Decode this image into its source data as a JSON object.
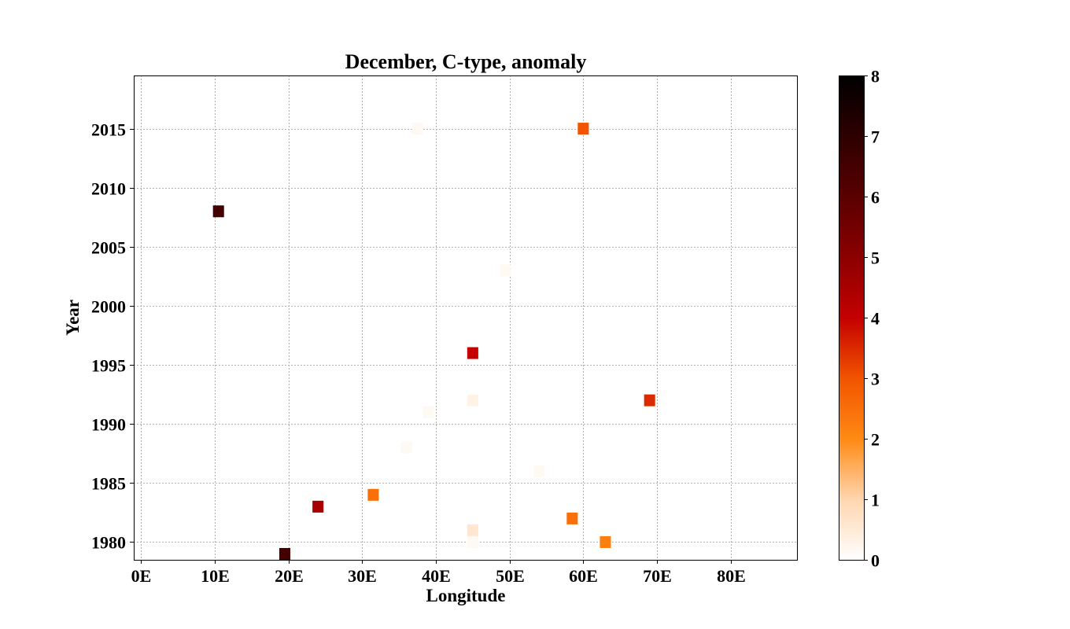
{
  "chart_data": {
    "type": "heatmap",
    "title": "December, C-type, anomaly",
    "xlabel": "Longitude",
    "ylabel": "Year",
    "xlim": [
      -1,
      89
    ],
    "ylim": [
      1978.5,
      2019.5
    ],
    "grid": true,
    "xticks": [
      {
        "value": 0,
        "label": "0E"
      },
      {
        "value": 10,
        "label": "10E"
      },
      {
        "value": 20,
        "label": "20E"
      },
      {
        "value": 30,
        "label": "30E"
      },
      {
        "value": 40,
        "label": "40E"
      },
      {
        "value": 50,
        "label": "50E"
      },
      {
        "value": 60,
        "label": "60E"
      },
      {
        "value": 70,
        "label": "70E"
      },
      {
        "value": 80,
        "label": "80E"
      }
    ],
    "yticks": [
      {
        "value": 1980,
        "label": "1980"
      },
      {
        "value": 1985,
        "label": "1985"
      },
      {
        "value": 1990,
        "label": "1990"
      },
      {
        "value": 1995,
        "label": "1995"
      },
      {
        "value": 2000,
        "label": "2000"
      },
      {
        "value": 2005,
        "label": "2005"
      },
      {
        "value": 2010,
        "label": "2010"
      },
      {
        "value": 2015,
        "label": "2015"
      }
    ],
    "colorbar": {
      "min": 0,
      "max": 8,
      "ticks": [
        0,
        1,
        2,
        3,
        4,
        5,
        6,
        7,
        8
      ],
      "colormap": "gist_heat_r"
    },
    "points": [
      {
        "lon": 37.5,
        "year": 2015,
        "value": 0.15
      },
      {
        "lon": 60.0,
        "year": 2015,
        "value": 3.0
      },
      {
        "lon": 10.5,
        "year": 2008,
        "value": 6.5
      },
      {
        "lon": 49.5,
        "year": 2003,
        "value": 0.15
      },
      {
        "lon": 45.0,
        "year": 1996,
        "value": 4.0
      },
      {
        "lon": 45.0,
        "year": 1992,
        "value": 0.3
      },
      {
        "lon": 69.0,
        "year": 1992,
        "value": 3.5
      },
      {
        "lon": 39.0,
        "year": 1991,
        "value": 0.15
      },
      {
        "lon": 36.0,
        "year": 1988,
        "value": 0.15
      },
      {
        "lon": 54.0,
        "year": 1986,
        "value": 0.15
      },
      {
        "lon": 31.5,
        "year": 1984,
        "value": 2.5
      },
      {
        "lon": 24.0,
        "year": 1983,
        "value": 4.5
      },
      {
        "lon": 58.5,
        "year": 1982,
        "value": 2.5
      },
      {
        "lon": 45.0,
        "year": 1981,
        "value": 0.6
      },
      {
        "lon": 45.0,
        "year": 1980,
        "value": 0.15
      },
      {
        "lon": 63.0,
        "year": 1980,
        "value": 2.2
      },
      {
        "lon": 19.5,
        "year": 1979,
        "value": 6.5
      }
    ]
  }
}
